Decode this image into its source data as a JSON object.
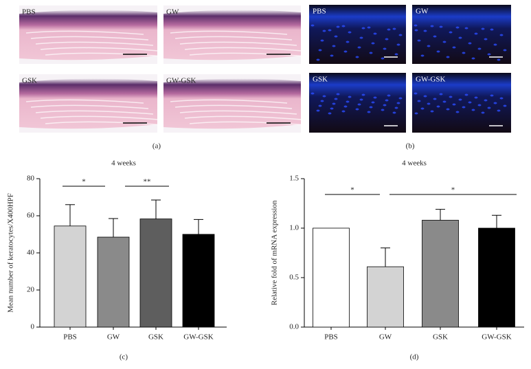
{
  "panels": {
    "a": {
      "labels": [
        "PBS",
        "GW",
        "GSK",
        "GW-GSK"
      ],
      "caption": "(a)"
    },
    "b": {
      "labels": [
        "PBS",
        "GW",
        "GSK",
        "GW-GSK"
      ],
      "caption": "(b)"
    }
  },
  "chart_data": [
    {
      "type": "bar",
      "title": "4 weeks",
      "ylabel": "Mean number of keratocytes/X400HPF",
      "categories": [
        "PBS",
        "GW",
        "GSK",
        "GW-GSK"
      ],
      "values": [
        54.5,
        48.5,
        58.3,
        50
      ],
      "errors": [
        11.5,
        10,
        10.2,
        8
      ],
      "colors": [
        "#d3d3d3",
        "#8a8a8a",
        "#5e5e5e",
        "#000000"
      ],
      "ylim": [
        0,
        80
      ],
      "yticks": [
        0,
        20,
        40,
        60,
        80
      ],
      "annotations": [
        {
          "text": "*"
        },
        {
          "text": "**"
        }
      ],
      "caption": "(c)"
    },
    {
      "type": "bar",
      "title": "4 weeks",
      "ylabel": "Relative fold of mRNA expression",
      "categories": [
        "PBS",
        "GW",
        "GSK",
        "GW-GSK"
      ],
      "values": [
        1.0,
        0.61,
        1.08,
        1.0
      ],
      "errors": [
        0,
        0.19,
        0.11,
        0.13
      ],
      "colors": [
        "#ffffff",
        "#d3d3d3",
        "#8a8a8a",
        "#000000"
      ],
      "ylim": [
        0,
        1.5
      ],
      "yticks": [
        {
          "value": 0,
          "label": "0.0"
        },
        0.5,
        {
          "value": 1,
          "label": "1.0"
        },
        {
          "value": 1.5,
          "label": "1.5"
        }
      ],
      "annotations": [
        {
          "text": "*"
        },
        {
          "text": "*"
        }
      ],
      "caption": "(d)"
    }
  ]
}
